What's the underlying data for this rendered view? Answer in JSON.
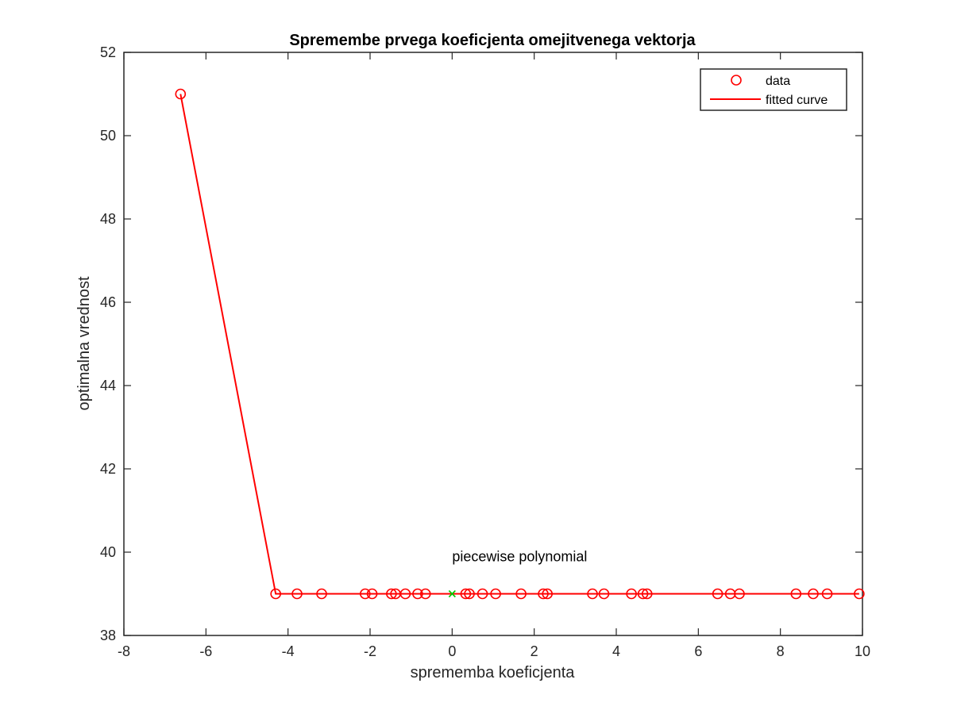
{
  "chart_data": {
    "type": "scatter",
    "title": "Spremembe prvega koeficjenta omejitvenega vektorja",
    "xlabel": "sprememba koeficjenta",
    "ylabel": "optimalna vrednost",
    "xlim": [
      -8,
      10
    ],
    "ylim": [
      38,
      52
    ],
    "xticks": [
      "-8",
      "-6",
      "-4",
      "-2",
      "0",
      "2",
      "4",
      "6",
      "8",
      "10"
    ],
    "yticks": [
      "38",
      "40",
      "42",
      "44",
      "46",
      "48",
      "50",
      "52"
    ],
    "grid": false,
    "legend_position": "top-right",
    "series": [
      {
        "name": "data",
        "marker": "circle",
        "color": "#ff0000",
        "x": [
          -6.62,
          -4.3,
          -3.78,
          -3.18,
          -2.12,
          -1.95,
          -1.48,
          -1.38,
          -1.14,
          -0.84,
          -0.65,
          0.33,
          0.42,
          0.74,
          1.06,
          1.68,
          2.22,
          2.32,
          3.42,
          3.7,
          4.37,
          4.65,
          4.75,
          6.47,
          6.78,
          7.0,
          8.38,
          8.8,
          9.14,
          9.92
        ],
        "y": [
          51,
          39,
          39,
          39,
          39,
          39,
          39,
          39,
          39,
          39,
          39,
          39,
          39,
          39,
          39,
          39,
          39,
          39,
          39,
          39,
          39,
          39,
          39,
          39,
          39,
          39,
          39,
          39,
          39,
          39
        ]
      },
      {
        "name": "fitted curve",
        "type": "line",
        "color": "#ff0000",
        "x": [
          -6.62,
          -4.3,
          9.92
        ],
        "y": [
          51,
          39,
          39
        ]
      }
    ],
    "extra_markers": [
      {
        "marker": "x",
        "color": "#00cc00",
        "x": 0,
        "y": 39
      }
    ],
    "annotations": [
      {
        "text": "piecewise polynomial",
        "x": 0,
        "y": 39.9
      }
    ]
  }
}
